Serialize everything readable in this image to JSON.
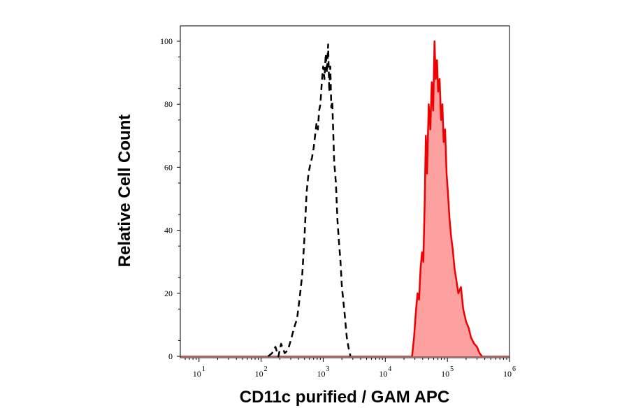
{
  "chart_data": {
    "type": "area",
    "xlabel": "CD11c purified / GAM APC",
    "ylabel": "Relative Cell Count",
    "x_scale": "log",
    "xlim": [
      5,
      1000000
    ],
    "ylim": [
      0,
      100
    ],
    "x_ticks": [
      {
        "base": "10",
        "exp": "1",
        "value": 10
      },
      {
        "base": "10",
        "exp": "2",
        "value": 100
      },
      {
        "base": "10",
        "exp": "3",
        "value": 1000
      },
      {
        "base": "10",
        "exp": "4",
        "value": 10000
      },
      {
        "base": "10",
        "exp": "5",
        "value": 100000
      },
      {
        "base": "10",
        "exp": "6",
        "value": 1000000
      }
    ],
    "y_ticks": [
      "0",
      "20",
      "40",
      "60",
      "80",
      "100"
    ],
    "grid": false,
    "series": [
      {
        "style": "dashed-outline",
        "color": "#000000",
        "x": [
          130,
          150,
          170,
          190,
          210,
          240,
          270,
          300,
          340,
          380,
          420,
          460,
          500,
          540,
          580,
          620,
          660,
          700,
          740,
          780,
          820,
          860,
          900,
          950,
          1000,
          1050,
          1100,
          1150,
          1200,
          1250,
          1300,
          1350,
          1400,
          1500,
          1600,
          1700,
          1800,
          1900,
          2000,
          2200,
          2400,
          2600,
          2750
        ],
        "y": [
          0,
          1,
          3,
          0,
          4,
          1,
          2,
          5,
          9,
          12,
          19,
          26,
          38,
          52,
          58,
          61,
          63,
          66,
          70,
          74,
          72,
          78,
          80,
          87,
          92,
          88,
          96,
          90,
          99,
          84,
          92,
          79,
          81,
          62,
          55,
          43,
          36,
          30,
          22,
          14,
          6,
          2,
          0
        ]
      },
      {
        "style": "filled",
        "color": "#ee0000",
        "fill": "#fca0a0",
        "x": [
          27000,
          29000,
          31000,
          33000,
          35000,
          37000,
          39000,
          41000,
          43000,
          45000,
          47000,
          50000,
          53000,
          56000,
          59000,
          62000,
          65000,
          68000,
          71000,
          75000,
          79000,
          83000,
          87000,
          92000,
          97000,
          102000,
          108000,
          115000,
          122000,
          130000,
          140000,
          150000,
          165000,
          180000,
          200000,
          220000,
          240000,
          270000,
          300000,
          330000,
          360000
        ],
        "y": [
          0,
          6,
          14,
          20,
          18,
          28,
          33,
          30,
          48,
          70,
          58,
          80,
          72,
          87,
          78,
          100,
          88,
          94,
          84,
          88,
          75,
          80,
          68,
          72,
          58,
          52,
          44,
          38,
          34,
          28,
          24,
          20,
          22,
          15,
          11,
          9,
          6,
          4,
          3,
          1,
          0
        ]
      }
    ]
  }
}
